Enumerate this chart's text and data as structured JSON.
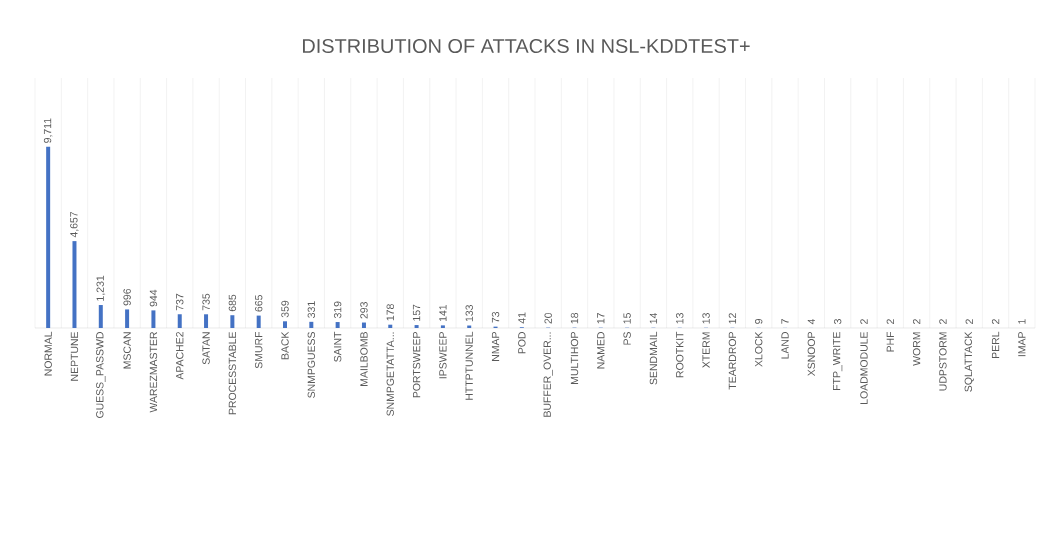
{
  "chart_data": {
    "type": "bar",
    "title": "DISTRIBUTION OF ATTACKS IN NSL-KDDTEST+",
    "categories": [
      "NORMAL",
      "NEPTUNE",
      "GUESS_PASSWD",
      "MSCAN",
      "WAREZMASTER",
      "APACHE2",
      "SATAN",
      "PROCESSTABLE",
      "SMURF",
      "BACK",
      "SNMPGUESS",
      "SAINT",
      "MAILBOMB",
      "SNMPGETATTA...",
      "PORTSWEEP",
      "IPSWEEP",
      "HTTPTUNNEL",
      "NMAP",
      "POD",
      "BUFFER_OVER...",
      "MULTIHOP",
      "NAMED",
      "PS",
      "SENDMAIL",
      "ROOTKIT",
      "XTERM",
      "TEARDROP",
      "XLOCK",
      "LAND",
      "XSNOOP",
      "FTP_WRITE",
      "LOADMODULE",
      "PHF",
      "WORM",
      "UDPSTORM",
      "SQLATTACK",
      "PERL",
      "IMAP"
    ],
    "values": [
      9711,
      4657,
      1231,
      996,
      944,
      737,
      735,
      685,
      665,
      359,
      331,
      319,
      293,
      178,
      157,
      141,
      133,
      73,
      41,
      20,
      18,
      17,
      15,
      14,
      13,
      13,
      12,
      9,
      7,
      4,
      3,
      2,
      2,
      2,
      2,
      2,
      2,
      1
    ],
    "value_labels": [
      "9,711",
      "4,657",
      "1,231",
      "996",
      "944",
      "737",
      "735",
      "685",
      "665",
      "359",
      "331",
      "319",
      "293",
      "178",
      "157",
      "141",
      "133",
      "73",
      "41",
      "20",
      "18",
      "17",
      "15",
      "14",
      "13",
      "13",
      "12",
      "9",
      "7",
      "4",
      "3",
      "2",
      "2",
      "2",
      "2",
      "2",
      "2",
      "1"
    ],
    "color": "#4472c4",
    "grid": "x"
  }
}
